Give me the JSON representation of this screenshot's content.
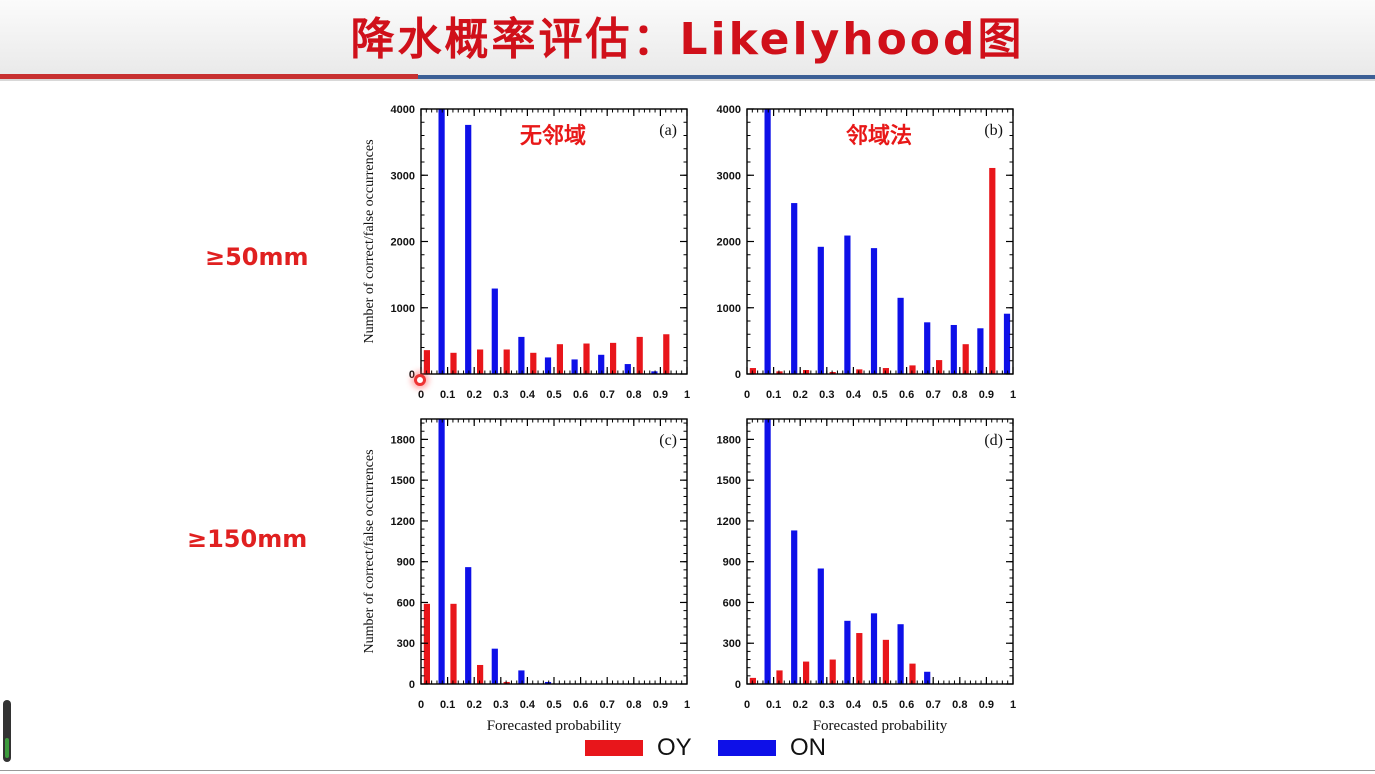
{
  "slide": {
    "title": "降水概率评估：Likelyhood图",
    "threshold_top": "≥50mm",
    "threshold_bottom": "≥150mm"
  },
  "legend": {
    "oy_label": "OY",
    "on_label": "ON",
    "oy_color": "#e8161b",
    "on_color": "#0e10e8"
  },
  "chart_data": [
    {
      "type": "bar",
      "panel": "(a)",
      "annotation": "无邻域",
      "ylabel": "Number of correct/false occurrences",
      "xlabel": "",
      "ylim": [
        0,
        4000
      ],
      "yticks": [
        0,
        1000,
        2000,
        3000,
        4000
      ],
      "xticks": [
        "0",
        "0.1",
        "0.2",
        "0.3",
        "0.4",
        "0.5",
        "0.6",
        "0.7",
        "0.8",
        "0.9",
        "1"
      ],
      "xlim": [
        0,
        1
      ],
      "x": [
        0.05,
        0.15,
        0.25,
        0.35,
        0.45,
        0.55,
        0.65,
        0.75,
        0.85,
        0.95
      ],
      "series": [
        {
          "name": "OY",
          "values": [
            360,
            320,
            370,
            370,
            320,
            450,
            460,
            470,
            560,
            600
          ]
        },
        {
          "name": "ON",
          "values": [
            4000,
            3760,
            1290,
            560,
            250,
            220,
            290,
            150,
            40,
            0
          ]
        }
      ]
    },
    {
      "type": "bar",
      "panel": "(b)",
      "annotation": "邻域法",
      "ylabel": "",
      "xlabel": "",
      "ylim": [
        0,
        4000
      ],
      "yticks": [
        0,
        1000,
        2000,
        3000,
        4000
      ],
      "xticks": [
        "0",
        "0.1",
        "0.2",
        "0.3",
        "0.4",
        "0.5",
        "0.6",
        "0.7",
        "0.8",
        "0.9",
        "1"
      ],
      "xlim": [
        0,
        1
      ],
      "x": [
        0.05,
        0.15,
        0.25,
        0.35,
        0.45,
        0.55,
        0.65,
        0.75,
        0.85,
        0.95
      ],
      "series": [
        {
          "name": "OY",
          "values": [
            90,
            40,
            60,
            30,
            70,
            90,
            130,
            210,
            450,
            3110
          ]
        },
        {
          "name": "ON",
          "values": [
            4000,
            2580,
            1920,
            2090,
            1900,
            1150,
            780,
            740,
            690,
            910
          ]
        }
      ]
    },
    {
      "type": "bar",
      "panel": "(c)",
      "annotation": "",
      "ylabel": "Number of correct/false occurrences",
      "xlabel": "Forecasted probability",
      "ylim": [
        0,
        1950
      ],
      "yticks": [
        0,
        300,
        600,
        900,
        1200,
        1500,
        1800
      ],
      "xticks": [
        "0",
        "0.1",
        "0.2",
        "0.3",
        "0.4",
        "0.5",
        "0.6",
        "0.7",
        "0.8",
        "0.9",
        "1"
      ],
      "xlim": [
        0,
        1
      ],
      "x": [
        0.05,
        0.15,
        0.25,
        0.35,
        0.45,
        0.55,
        0.65,
        0.75,
        0.85,
        0.95
      ],
      "series": [
        {
          "name": "OY",
          "values": [
            590,
            590,
            140,
            15,
            0,
            0,
            0,
            0,
            0,
            0
          ]
        },
        {
          "name": "ON",
          "values": [
            1950,
            860,
            260,
            100,
            15,
            0,
            0,
            0,
            0,
            0
          ]
        }
      ]
    },
    {
      "type": "bar",
      "panel": "(d)",
      "annotation": "",
      "ylabel": "",
      "xlabel": "Forecasted probability",
      "ylim": [
        0,
        1950
      ],
      "yticks": [
        0,
        300,
        600,
        900,
        1200,
        1500,
        1800
      ],
      "xticks": [
        "0",
        "0.1",
        "0.2",
        "0.3",
        "0.4",
        "0.5",
        "0.6",
        "0.7",
        "0.8",
        "0.9",
        "1"
      ],
      "xlim": [
        0,
        1
      ],
      "x": [
        0.05,
        0.15,
        0.25,
        0.35,
        0.45,
        0.55,
        0.65,
        0.75,
        0.85,
        0.95
      ],
      "series": [
        {
          "name": "OY",
          "values": [
            45,
            100,
            165,
            180,
            375,
            325,
            150,
            0,
            0,
            0
          ]
        },
        {
          "name": "ON",
          "values": [
            1950,
            1130,
            850,
            465,
            520,
            440,
            90,
            0,
            0,
            0
          ]
        }
      ]
    }
  ]
}
